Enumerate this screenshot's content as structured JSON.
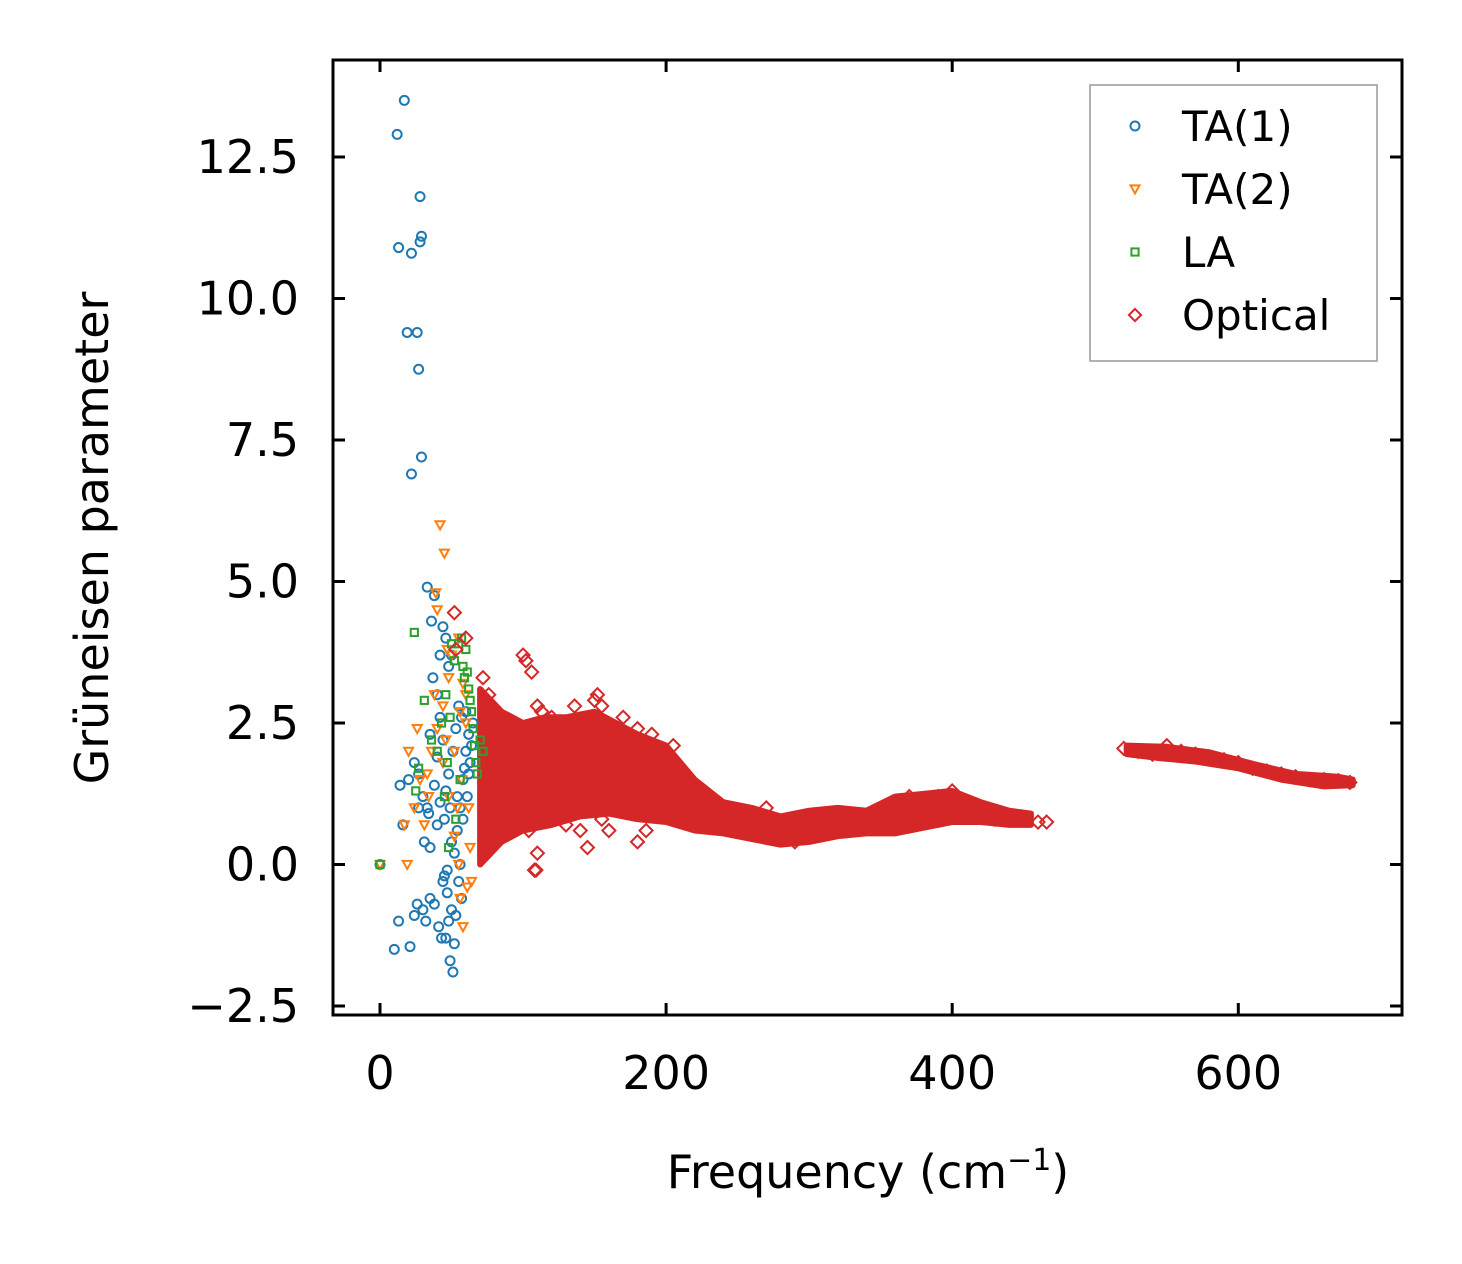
{
  "chart_data": {
    "type": "scatter",
    "title": "",
    "xlabel": "Frequency (cm",
    "xlabel_sup": "−1",
    "xlabel_end": ")",
    "ylabel": "Grüneisen parameter",
    "xlim": [
      -34,
      710
    ],
    "ylim": [
      -2.7,
      14.2
    ],
    "xticks": [
      0,
      200,
      400,
      600
    ],
    "xtick_labels": [
      "0",
      "200",
      "400",
      "600"
    ],
    "yticks": [
      -2.5,
      0.0,
      2.5,
      5.0,
      7.5,
      10.0,
      12.5
    ],
    "ytick_labels": [
      "−2.5",
      "0.0",
      "2.5",
      "5.0",
      "7.5",
      "10.0",
      "12.5"
    ],
    "grid": false,
    "legend_position": "top-right",
    "series": [
      {
        "name": "TA(1)",
        "marker": "circle",
        "color": "#1f77b4",
        "points": [
          [
            0,
            0
          ],
          [
            12,
            12.9
          ],
          [
            17,
            13.5
          ],
          [
            13,
            10.9
          ],
          [
            22,
            10.8
          ],
          [
            28,
            11.8
          ],
          [
            28,
            11.0
          ],
          [
            29,
            11.1
          ],
          [
            19,
            9.4
          ],
          [
            26,
            9.4
          ],
          [
            27,
            8.75
          ],
          [
            22,
            6.9
          ],
          [
            29,
            7.2
          ],
          [
            33,
            4.9
          ],
          [
            36,
            4.3
          ],
          [
            38,
            4.75
          ],
          [
            44,
            4.2
          ],
          [
            46,
            4.0
          ],
          [
            42,
            3.7
          ],
          [
            37,
            3.3
          ],
          [
            40,
            3.0
          ],
          [
            48,
            3.5
          ],
          [
            50,
            3.7
          ],
          [
            35,
            2.3
          ],
          [
            14,
            1.4
          ],
          [
            20,
            1.5
          ],
          [
            24,
            1.8
          ],
          [
            27,
            1.6
          ],
          [
            30,
            1.2
          ],
          [
            33,
            1.0
          ],
          [
            27,
            1.0
          ],
          [
            31,
            0.4
          ],
          [
            35,
            0.3
          ],
          [
            40,
            0.7
          ],
          [
            34,
            0.9
          ],
          [
            38,
            1.4
          ],
          [
            42,
            1.1
          ],
          [
            45,
            0.8
          ],
          [
            46,
            1.3
          ],
          [
            49,
            1.0
          ],
          [
            16,
            0.7
          ],
          [
            10,
            -1.5
          ],
          [
            13,
            -1.0
          ],
          [
            21,
            -1.45
          ],
          [
            24,
            -0.9
          ],
          [
            26,
            -0.7
          ],
          [
            30,
            -0.8
          ],
          [
            32,
            -1.0
          ],
          [
            35,
            -0.6
          ],
          [
            38,
            -0.7
          ],
          [
            41,
            -1.1
          ],
          [
            43,
            -1.3
          ],
          [
            46,
            -1.3
          ],
          [
            49,
            -1.7
          ],
          [
            51,
            -1.9
          ],
          [
            48,
            -1.0
          ],
          [
            52,
            -1.4
          ],
          [
            44,
            -0.3
          ],
          [
            45,
            -0.2
          ],
          [
            47,
            -0.5
          ],
          [
            50,
            -0.8
          ],
          [
            53,
            -0.9
          ],
          [
            55,
            -0.3
          ],
          [
            52,
            0.2
          ],
          [
            54,
            0.6
          ],
          [
            56,
            1.0
          ],
          [
            58,
            1.5
          ],
          [
            60,
            2.0
          ],
          [
            62,
            2.3
          ],
          [
            57,
            2.6
          ],
          [
            55,
            2.8
          ],
          [
            59,
            1.7
          ],
          [
            61,
            1.2
          ],
          [
            63,
            1.8
          ],
          [
            64,
            2.1
          ],
          [
            58,
            0.8
          ],
          [
            56,
            0.0
          ],
          [
            53,
            2.4
          ],
          [
            51,
            2.0
          ],
          [
            48,
            1.6
          ],
          [
            44,
            2.2
          ],
          [
            42,
            2.6
          ],
          [
            40,
            1.9
          ],
          [
            60,
            2.7
          ],
          [
            65,
            2.5
          ],
          [
            62,
            1.6
          ],
          [
            54,
            1.2
          ],
          [
            50,
            0.4
          ],
          [
            47,
            -0.1
          ],
          [
            57,
            -0.6
          ]
        ]
      },
      {
        "name": "TA(2)",
        "marker": "triangle-down",
        "color": "#ff7f0e",
        "points": [
          [
            0,
            0
          ],
          [
            17,
            0.7
          ],
          [
            19,
            0.0
          ],
          [
            20,
            2.0
          ],
          [
            26,
            2.4
          ],
          [
            28,
            1.5
          ],
          [
            33,
            1.6
          ],
          [
            36,
            2.0
          ],
          [
            40,
            2.4
          ],
          [
            38,
            3.0
          ],
          [
            44,
            2.8
          ],
          [
            46,
            2.2
          ],
          [
            48,
            3.3
          ],
          [
            50,
            3.7
          ],
          [
            52,
            2.0
          ],
          [
            54,
            1.0
          ],
          [
            52,
            0.5
          ],
          [
            55,
            0.0
          ],
          [
            56,
            -0.6
          ],
          [
            58,
            -1.1
          ],
          [
            42,
            6.0
          ],
          [
            45,
            5.5
          ],
          [
            39,
            4.8
          ],
          [
            40,
            4.5
          ],
          [
            47,
            3.8
          ],
          [
            55,
            4.0
          ],
          [
            58,
            3.2
          ],
          [
            60,
            3.0
          ],
          [
            60,
            2.5
          ],
          [
            57,
            1.5
          ],
          [
            62,
            1.0
          ],
          [
            63,
            0.3
          ],
          [
            64,
            -0.3
          ],
          [
            61,
            -0.4
          ],
          [
            56,
            2.7
          ],
          [
            48,
            1.2
          ],
          [
            44,
            1.8
          ],
          [
            34,
            1.2
          ],
          [
            31,
            0.7
          ],
          [
            24,
            1.0
          ]
        ]
      },
      {
        "name": "LA",
        "marker": "square",
        "color": "#2ca02c",
        "points": [
          [
            0,
            0
          ],
          [
            24,
            4.1
          ],
          [
            27,
            1.7
          ],
          [
            25,
            1.3
          ],
          [
            31,
            2.9
          ],
          [
            36,
            2.2
          ],
          [
            40,
            2.0
          ],
          [
            43,
            2.5
          ],
          [
            46,
            3.0
          ],
          [
            49,
            2.6
          ],
          [
            50,
            3.9
          ],
          [
            52,
            3.6
          ],
          [
            55,
            3.9
          ],
          [
            57,
            4.0
          ],
          [
            58,
            3.5
          ],
          [
            59,
            3.3
          ],
          [
            60,
            3.8
          ],
          [
            61,
            3.4
          ],
          [
            62,
            3.1
          ],
          [
            63,
            2.9
          ],
          [
            64,
            2.7
          ],
          [
            65,
            2.4
          ],
          [
            66,
            2.1
          ],
          [
            67,
            1.8
          ],
          [
            68,
            1.6
          ],
          [
            70,
            2.2
          ],
          [
            72,
            2.0
          ],
          [
            56,
            1.5
          ],
          [
            53,
            0.8
          ],
          [
            48,
            0.3
          ],
          [
            47,
            1.8
          ],
          [
            45,
            1.2
          ]
        ]
      },
      {
        "name": "Optical",
        "marker": "diamond",
        "color": "#d62728",
        "points": [
          [
            52,
            4.45
          ],
          [
            53,
            3.8
          ],
          [
            60,
            4.0
          ],
          [
            72,
            3.3
          ],
          [
            76,
            3.0
          ],
          [
            100,
            3.7
          ],
          [
            102,
            3.6
          ],
          [
            106,
            3.4
          ],
          [
            110,
            2.8
          ],
          [
            113,
            2.7
          ],
          [
            120,
            2.6
          ],
          [
            125,
            2.5
          ],
          [
            136,
            2.8
          ],
          [
            150,
            2.9
          ],
          [
            152,
            3.0
          ],
          [
            155,
            2.8
          ],
          [
            170,
            2.6
          ],
          [
            180,
            2.4
          ],
          [
            190,
            2.3
          ],
          [
            205,
            2.1
          ],
          [
            108,
            -0.1
          ],
          [
            109,
            -0.1
          ],
          [
            104,
            0.6
          ],
          [
            110,
            0.2
          ],
          [
            118,
            0.9
          ],
          [
            125,
            1.0
          ],
          [
            130,
            0.7
          ],
          [
            140,
            0.6
          ],
          [
            145,
            0.3
          ],
          [
            155,
            0.8
          ],
          [
            160,
            0.6
          ],
          [
            180,
            0.4
          ],
          [
            186,
            0.6
          ],
          [
            200,
            0.9
          ],
          [
            210,
            1.2
          ],
          [
            220,
            1.4
          ],
          [
            226,
            1.2
          ],
          [
            232,
            1.0
          ],
          [
            240,
            0.9
          ],
          [
            250,
            0.8
          ],
          [
            260,
            0.7
          ],
          [
            270,
            1.0
          ],
          [
            280,
            0.5
          ],
          [
            290,
            0.4
          ],
          [
            300,
            0.6
          ],
          [
            310,
            0.8
          ],
          [
            320,
            0.9
          ],
          [
            330,
            0.8
          ],
          [
            340,
            0.7
          ],
          [
            350,
            0.8
          ],
          [
            360,
            1.0
          ],
          [
            370,
            1.2
          ],
          [
            380,
            1.1
          ],
          [
            390,
            1.2
          ],
          [
            400,
            1.3
          ],
          [
            410,
            1.0
          ],
          [
            420,
            0.9
          ],
          [
            430,
            0.8
          ],
          [
            440,
            0.8
          ],
          [
            450,
            0.8
          ],
          [
            460,
            0.75
          ],
          [
            466,
            0.75
          ],
          [
            520,
            2.05
          ],
          [
            530,
            2.0
          ],
          [
            540,
            1.95
          ],
          [
            550,
            2.1
          ],
          [
            560,
            2.0
          ],
          [
            570,
            1.95
          ],
          [
            580,
            1.9
          ],
          [
            590,
            1.85
          ],
          [
            600,
            1.8
          ],
          [
            610,
            1.7
          ],
          [
            620,
            1.65
          ],
          [
            630,
            1.6
          ],
          [
            640,
            1.55
          ],
          [
            650,
            1.5
          ],
          [
            660,
            1.5
          ],
          [
            670,
            1.48
          ],
          [
            678,
            1.45
          ]
        ]
      }
    ]
  }
}
